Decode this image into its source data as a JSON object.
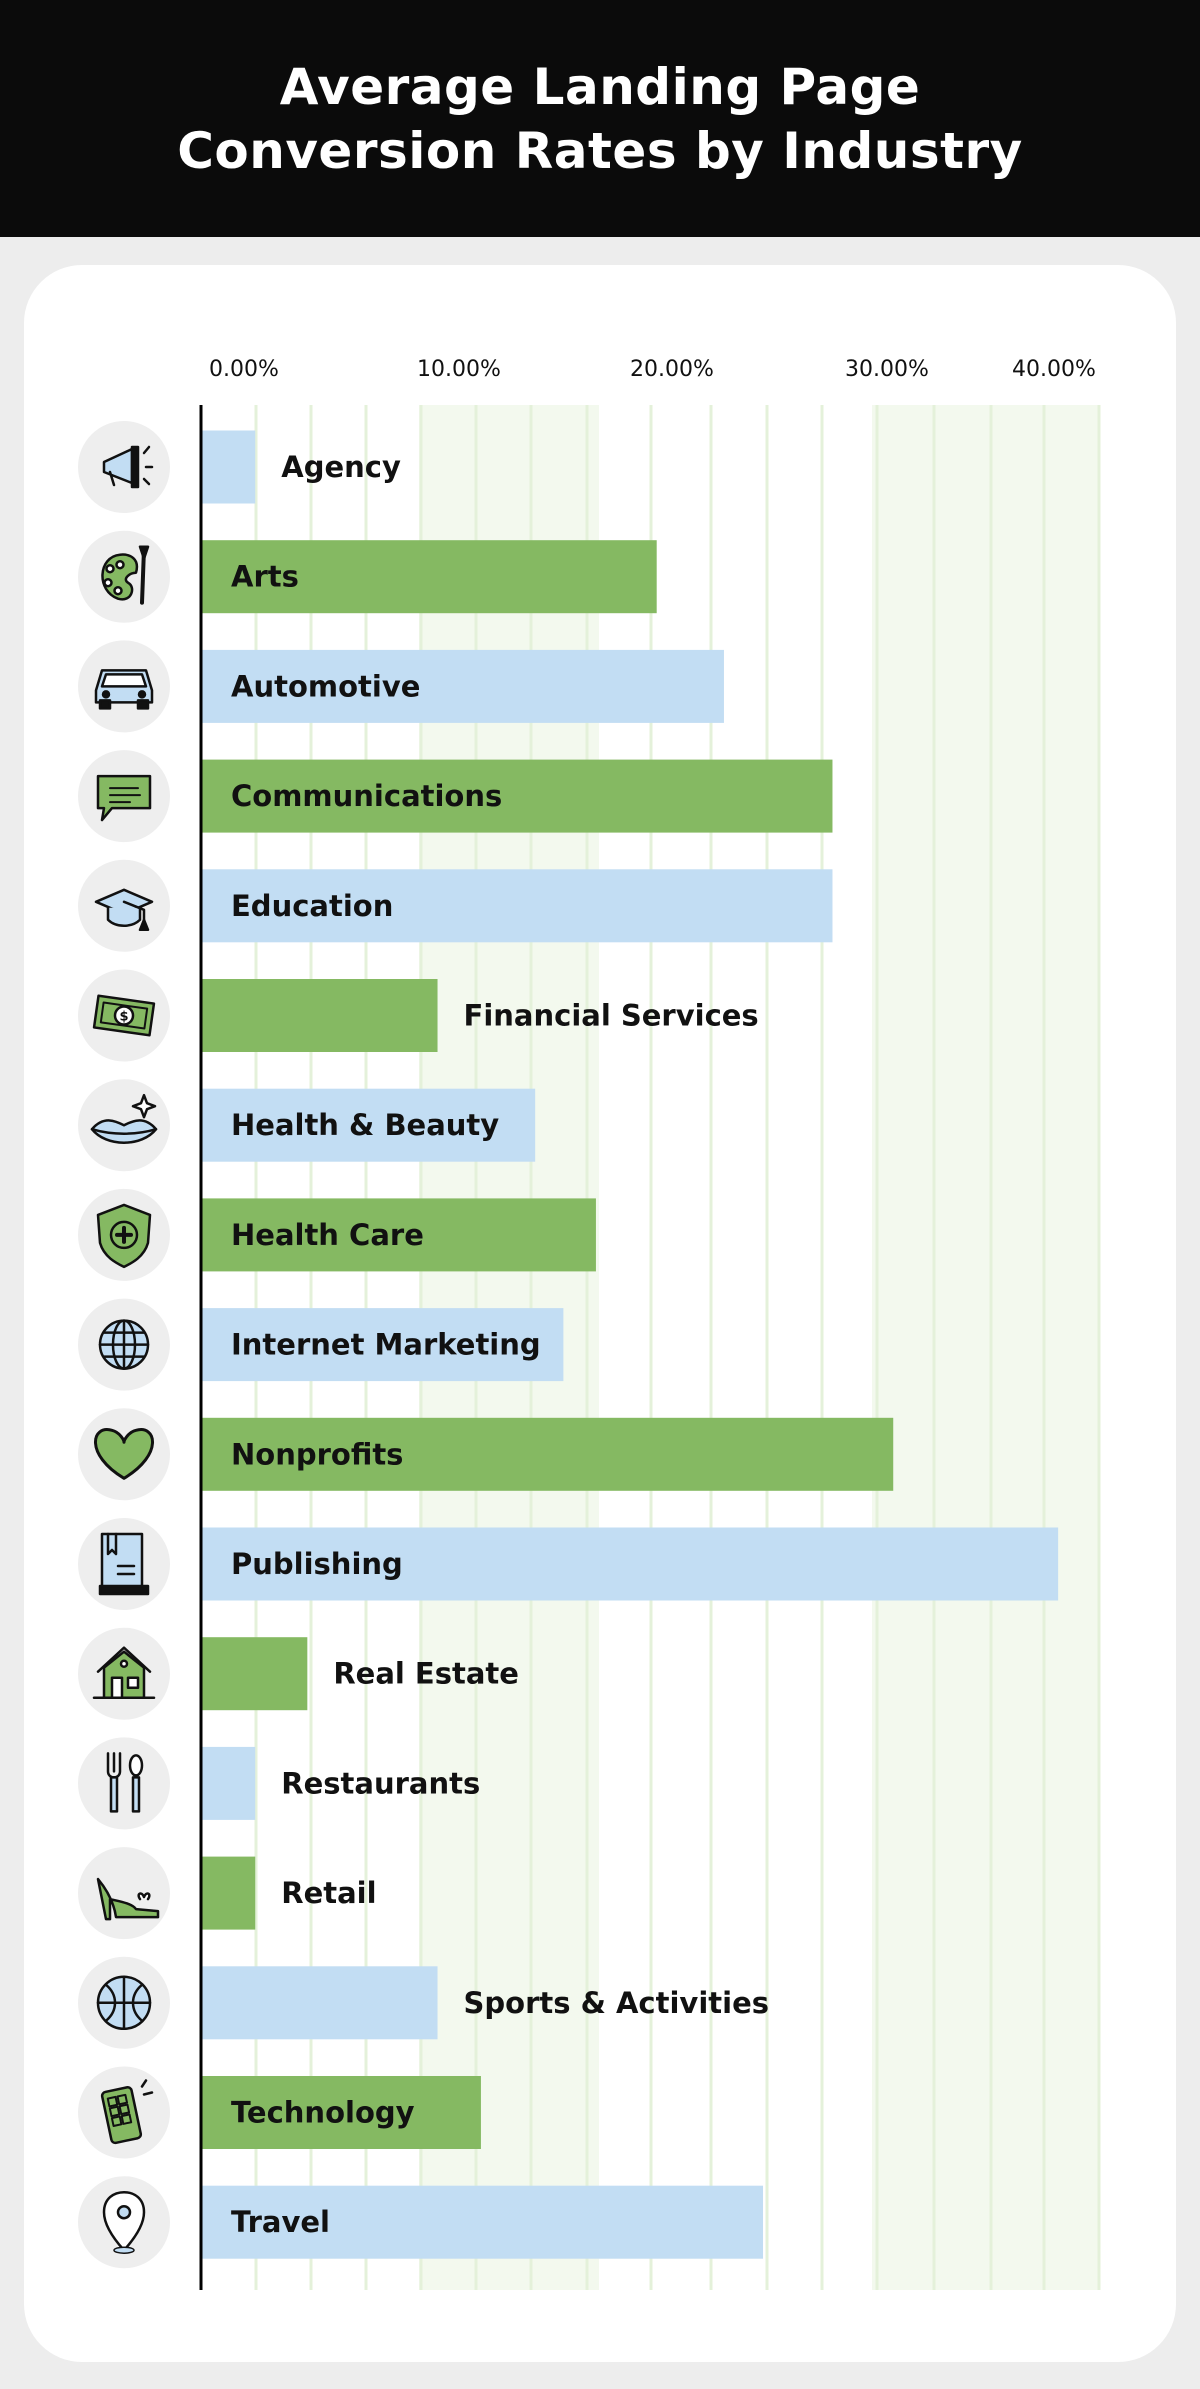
{
  "header": {
    "title_line1": "Average Landing Page",
    "title_line2": "Conversion Rates by Industry"
  },
  "colors": {
    "header_bg": "#0b0b0b",
    "page_bg": "#ededed",
    "card_bg": "#ffffff",
    "green": "#85b962",
    "blue": "#c2ddf3",
    "plot_shade": "#f3f9ee",
    "gridline": "#e4f1da",
    "icon_bg": "#eeeeee",
    "axis": "#000000"
  },
  "chart_data": {
    "type": "bar",
    "orientation": "horizontal",
    "title": "Average Landing Page Conversion Rates by Industry",
    "xlabel": "",
    "ylabel": "",
    "x_tick_labels": [
      "0.00%",
      "10.00%",
      "20.00%",
      "30.00%",
      "40.00%"
    ],
    "x_tick_values": [
      0,
      10,
      20,
      30,
      40
    ],
    "grid": true,
    "legend": false,
    "categories": [
      "Agency",
      "Arts",
      "Automotive",
      "Communications",
      "Education",
      "Financial Services",
      "Health & Beauty",
      "Health Care",
      "Internet Marketing",
      "Nonprofits",
      "Publishing",
      "Real Estate",
      "Restaurants",
      "Retail",
      "Sports & Activities",
      "Technology",
      "Travel"
    ],
    "values": [
      2.5,
      21.0,
      24.1,
      29.1,
      29.1,
      10.9,
      15.4,
      18.2,
      16.7,
      31.9,
      39.5,
      4.9,
      2.5,
      2.5,
      10.9,
      12.9,
      25.9
    ],
    "bar_colors": [
      "blue",
      "green",
      "blue",
      "green",
      "blue",
      "green",
      "blue",
      "green",
      "blue",
      "green",
      "blue",
      "green",
      "blue",
      "green",
      "blue",
      "green",
      "blue"
    ],
    "icons": [
      "megaphone-icon",
      "palette-icon",
      "car-icon",
      "chat-message-icon",
      "graduation-cap-icon",
      "money-bill-icon",
      "lips-sparkle-icon",
      "shield-cross-icon",
      "globe-icon",
      "heart-icon",
      "book-icon",
      "house-icon",
      "fork-spoon-icon",
      "high-heel-icon",
      "basketball-icon",
      "phone-keypad-icon",
      "map-pin-icon"
    ]
  }
}
